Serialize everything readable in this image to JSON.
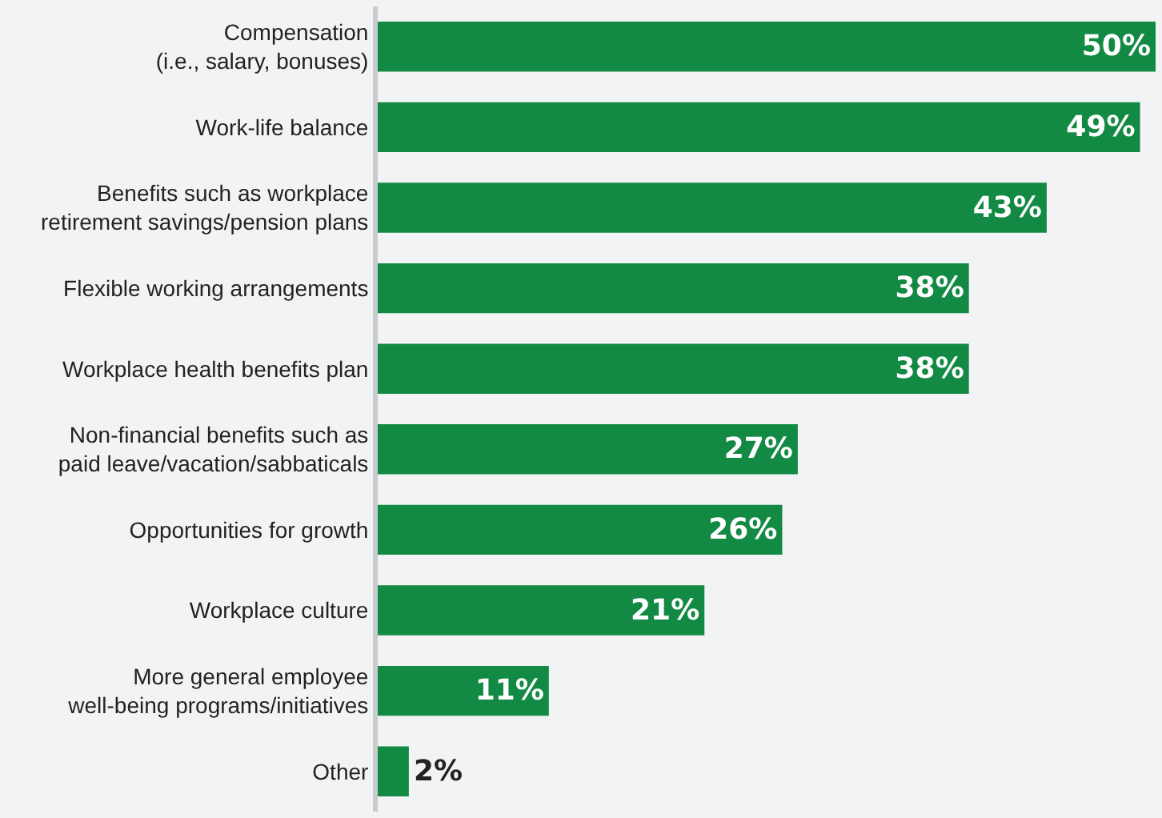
{
  "chart_data": {
    "type": "bar",
    "orientation": "horizontal",
    "categories": [
      "Compensation\n(i.e., salary, bonuses)",
      "Work-life balance",
      "Benefits such as workplace\nretirement savings/pension plans",
      "Flexible working arrangements",
      "Workplace health benefits plan",
      "Non-financial benefits such as\npaid leave/vacation/sabbaticals",
      "Opportunities for growth",
      "Workplace culture",
      "More general employee\nwell-being programs/initiatives",
      "Other"
    ],
    "values": [
      50,
      49,
      43,
      38,
      38,
      27,
      26,
      21,
      11,
      2
    ],
    "value_labels": [
      "50%",
      "49%",
      "43%",
      "38%",
      "38%",
      "27%",
      "26%",
      "21%",
      "11%",
      "2%"
    ],
    "color": "#128a43",
    "xlim": [
      0,
      50
    ],
    "tick_labels": "y",
    "grid": false,
    "legend": false
  }
}
